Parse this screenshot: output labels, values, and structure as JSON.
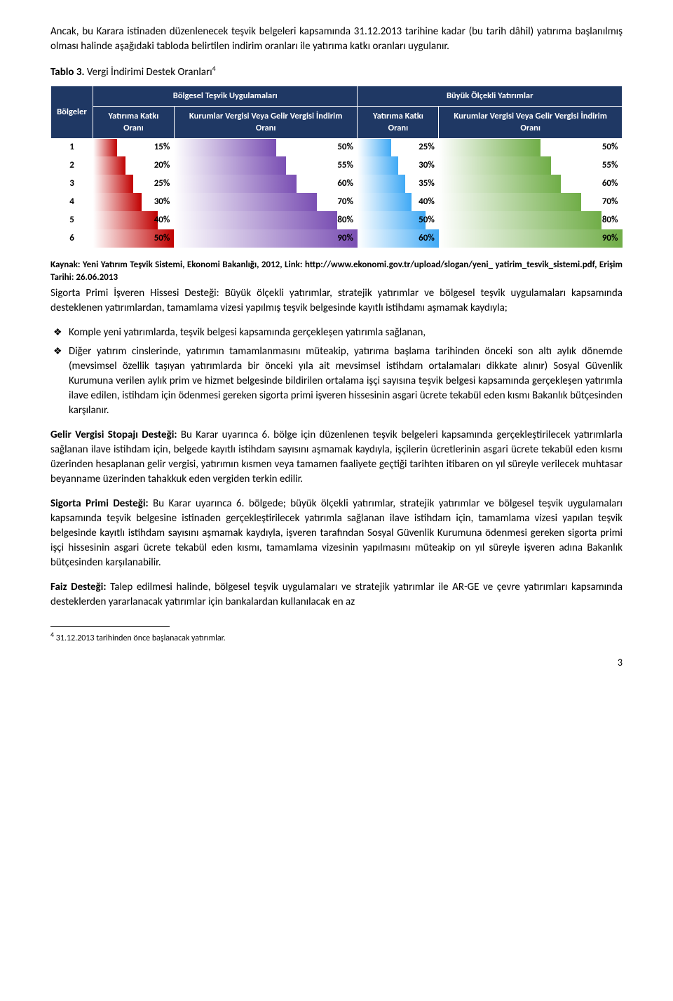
{
  "intro": {
    "p1": "Ancak, bu Karara istinaden düzenlenecek teşvik belgeleri kapsamında 31.12.2013 tarihine kadar (bu tarih dâhil) yatırıma başlanılmış olması halinde aşağıdaki tabloda belirtilen indirim oranları ile yatırıma katkı oranları uygulanır."
  },
  "table_caption": {
    "label": "Tablo 3.",
    "title": "Vergi İndirimi Destek Oranları",
    "fn": "4"
  },
  "table": {
    "headers": {
      "regions": "Bölgeler",
      "group1": "Bölgesel Teşvik Uygulamaları",
      "group2": "Büyük Ölçekli Yatırımlar",
      "sub1": "Yatırıma Katkı Oranı",
      "sub2": "Kurumlar Vergisi Veya Gelir Vergisi İndirim Oranı",
      "sub3": "Yatırıma Katkı Oranı",
      "sub4": "Kurumlar Vergisi Veya Gelir Vergisi İndirim Oranı"
    },
    "gradients": {
      "red": {
        "from": "#ffffff",
        "to": "#c00000"
      },
      "purple": {
        "from": "#ffffff",
        "to": "#7a4fb3"
      },
      "blue": {
        "from": "#ffffff",
        "to": "#3fa9f5"
      },
      "green": {
        "from": "#ffffff",
        "to": "#70ad47"
      }
    },
    "max": {
      "c1": 50,
      "c2": 90,
      "c3": 60,
      "c4": 90
    },
    "rows": [
      {
        "region": "1",
        "v": [
          15,
          50,
          25,
          50
        ]
      },
      {
        "region": "2",
        "v": [
          20,
          55,
          30,
          55
        ]
      },
      {
        "region": "3",
        "v": [
          25,
          60,
          35,
          60
        ]
      },
      {
        "region": "4",
        "v": [
          30,
          70,
          40,
          70
        ]
      },
      {
        "region": "5",
        "v": [
          40,
          80,
          50,
          80
        ]
      },
      {
        "region": "6",
        "v": [
          50,
          90,
          60,
          90
        ]
      }
    ]
  },
  "source": {
    "line1": "Kaynak: Yeni Yatırım Teşvik Sistemi, Ekonomi Bakanlığı, 2012, Link: http://www.ekonomi.gov.tr/upload/slogan/yeni_ yatirim_tesvik_sistemi.pdf, Erişim Tarihi: 26.06.2013"
  },
  "sigorta_intro": "Sigorta Primi İşveren Hissesi Desteği: Büyük ölçekli yatırımlar, stratejik yatırımlar ve bölgesel teşvik uygulamaları kapsamında desteklenen yatırımlardan, tamamlama vizesi yapılmış teşvik belgesinde kayıtlı istihdamı aşmamak kaydıyla;",
  "bullets": [
    "Komple yeni yatırımlarda, teşvik belgesi kapsamında gerçekleşen yatırımla sağlanan,",
    "Diğer yatırım cinslerinde, yatırımın tamamlanmasını müteakip, yatırıma başlama tarihinden önceki son altı aylık dönemde (mevsimsel özellik taşıyan yatırımlarda bir önceki yıla ait mevsimsel istihdam ortalamaları dikkate alınır) Sosyal Güvenlik Kurumuna verilen aylık prim ve hizmet belgesinde bildirilen ortalama işçi sayısına teşvik belgesi kapsamında gerçekleşen yatırımla ilave edilen, istihdam için ödenmesi gereken sigorta primi işveren hissesinin asgari ücrete tekabül eden kısmı Bakanlık bütçesinden karşılanır."
  ],
  "gelir": {
    "title": "Gelir Vergisi Stopajı Desteği: ",
    "body": "Bu Karar uyarınca 6. bölge için düzenlenen teşvik belgeleri kapsamında gerçekleştirilecek yatırımlarla sağlanan ilave istihdam için, belgede kayıtlı istihdam sayısını aşmamak kaydıyla, işçilerin ücretlerinin asgari ücrete tekabül eden kısmı üzerinden hesaplanan gelir vergisi, yatırımın kısmen veya tamamen faaliyete geçtiği tarihten itibaren on yıl süreyle verilecek muhtasar beyanname üzerinden tahakkuk eden vergiden terkin edilir."
  },
  "sigorta_primi": {
    "title": "Sigorta Primi Desteği: ",
    "body": "Bu Karar uyarınca 6. bölgede; büyük ölçekli yatırımlar, stratejik yatırımlar ve bölgesel teşvik uygulamaları kapsamında teşvik belgesine istinaden gerçekleştirilecek yatırımla sağlanan ilave istihdam için, tamamlama vizesi yapılan teşvik belgesinde kayıtlı istihdam sayısını aşmamak kaydıyla, işveren tarafından Sosyal Güvenlik Kurumuna ödenmesi gereken sigorta primi işçi hissesinin asgari ücrete tekabül eden kısmı, tamamlama vizesinin yapılmasını müteakip on yıl süreyle işveren adına Bakanlık bütçesinden karşılanabilir."
  },
  "faiz": {
    "title": "Faiz Desteği: ",
    "body": "Talep edilmesi halinde, bölgesel teşvik uygulamaları ve stratejik yatırımlar ile AR-GE ve çevre yatırımları kapsamında desteklerden yararlanacak yatırımlar için bankalardan kullanılacak en az"
  },
  "footnote": {
    "num": "4",
    "text": " 31.12.2013 tarihinden önce başlanacak yatırımlar."
  },
  "page_number": "3"
}
